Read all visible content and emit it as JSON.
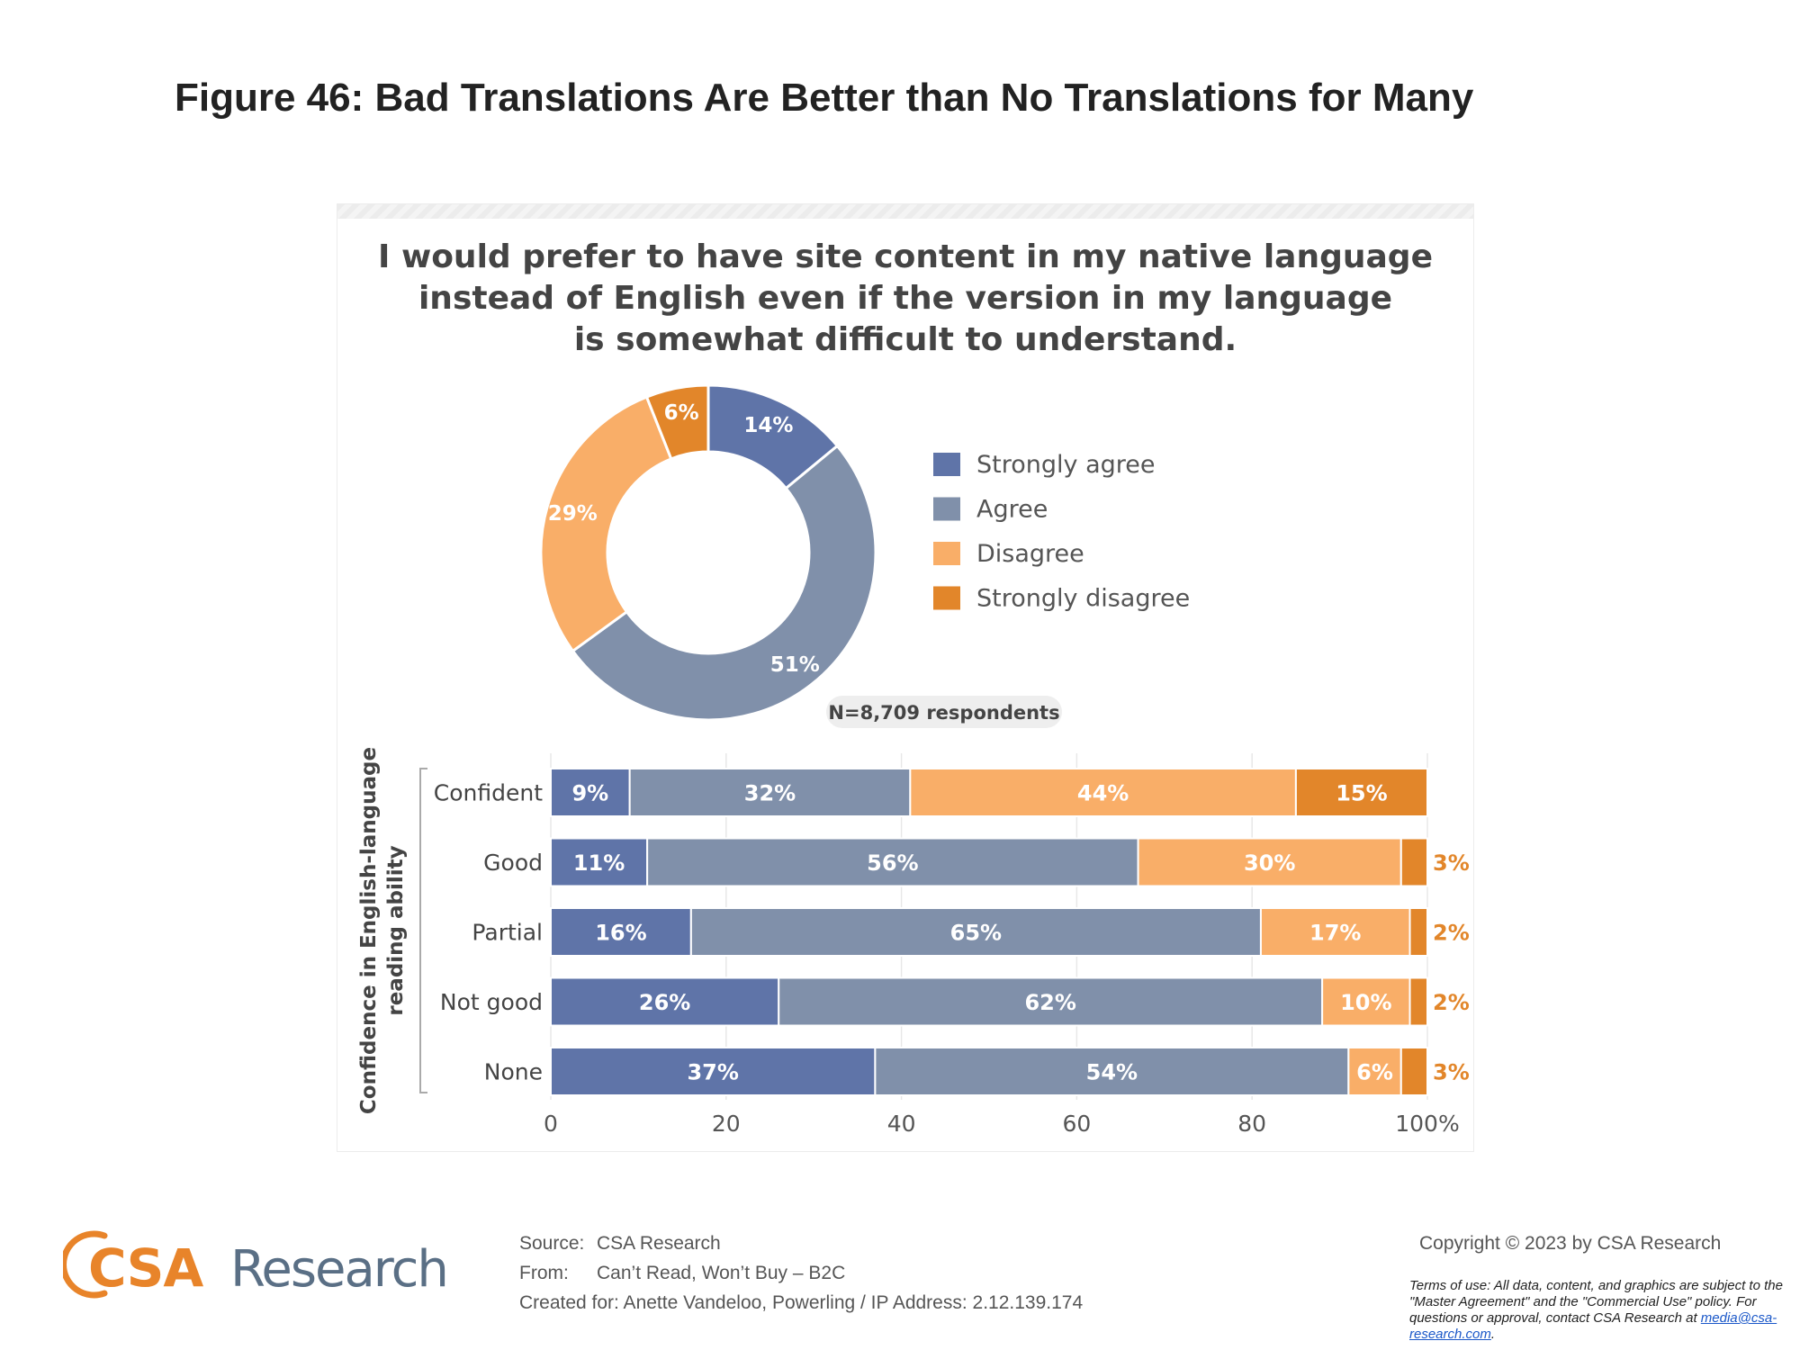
{
  "page": {
    "title": "Figure 46: Bad Translations Are Better than No Translations for Many"
  },
  "chart_title_lines": [
    "I would prefer to have site content in my native language",
    "instead of English even if the version in my language",
    "is somewhat difficult to understand."
  ],
  "colors": {
    "strongly_agree": "#5f74a8",
    "agree": "#8090aa",
    "disagree": "#f9ae68",
    "strongly_disagree": "#e2862a",
    "orange_label": "#e2862a"
  },
  "chart_data": [
    {
      "type": "pie",
      "variant": "donut",
      "categories": [
        "Strongly agree",
        "Agree",
        "Disagree",
        "Strongly disagree"
      ],
      "values": [
        14,
        51,
        29,
        6
      ],
      "value_labels": [
        "14%",
        "51%",
        "29%",
        "6%"
      ],
      "legend": [
        "Strongly agree",
        "Agree",
        "Disagree",
        "Strongly disagree"
      ],
      "legend_position": "right",
      "annotation": "N=8,709 respondents"
    },
    {
      "type": "bar",
      "orientation": "horizontal",
      "stacked": true,
      "ylabel_lines": [
        "Confidence in English-language",
        "reading ability"
      ],
      "categories": [
        "Confident",
        "Good",
        "Partial",
        "Not good",
        "None"
      ],
      "series": [
        {
          "name": "Strongly agree",
          "values": [
            9,
            11,
            16,
            26,
            37
          ]
        },
        {
          "name": "Agree",
          "values": [
            32,
            56,
            65,
            62,
            54
          ]
        },
        {
          "name": "Disagree",
          "values": [
            44,
            30,
            17,
            10,
            6
          ]
        },
        {
          "name": "Strongly disagree",
          "values": [
            15,
            3,
            2,
            2,
            3
          ]
        }
      ],
      "x_ticks": [
        "0",
        "20",
        "40",
        "60",
        "80",
        "100%"
      ],
      "xlim": [
        0,
        100
      ],
      "grid": true
    }
  ],
  "footer": {
    "logo_text_csa": "CSA",
    "logo_text_research": "Research",
    "source_label": "Source:",
    "source_value": "CSA Research",
    "from_label": "From:",
    "from_value": "Can’t Read, Won’t Buy – B2C",
    "created_for": "Created for: Anette Vandeloo, Powerling / IP Address: 2.12.139.174",
    "copyright": "Copyright © 2023 by CSA Research",
    "terms_text": "Terms of use: All data, content, and graphics are subject to the \"Master Agreement\" and the \"Commercial Use\" policy. For questions or approval, contact CSA Research at",
    "terms_email": "media@csa-research.com",
    "terms_end": "."
  }
}
